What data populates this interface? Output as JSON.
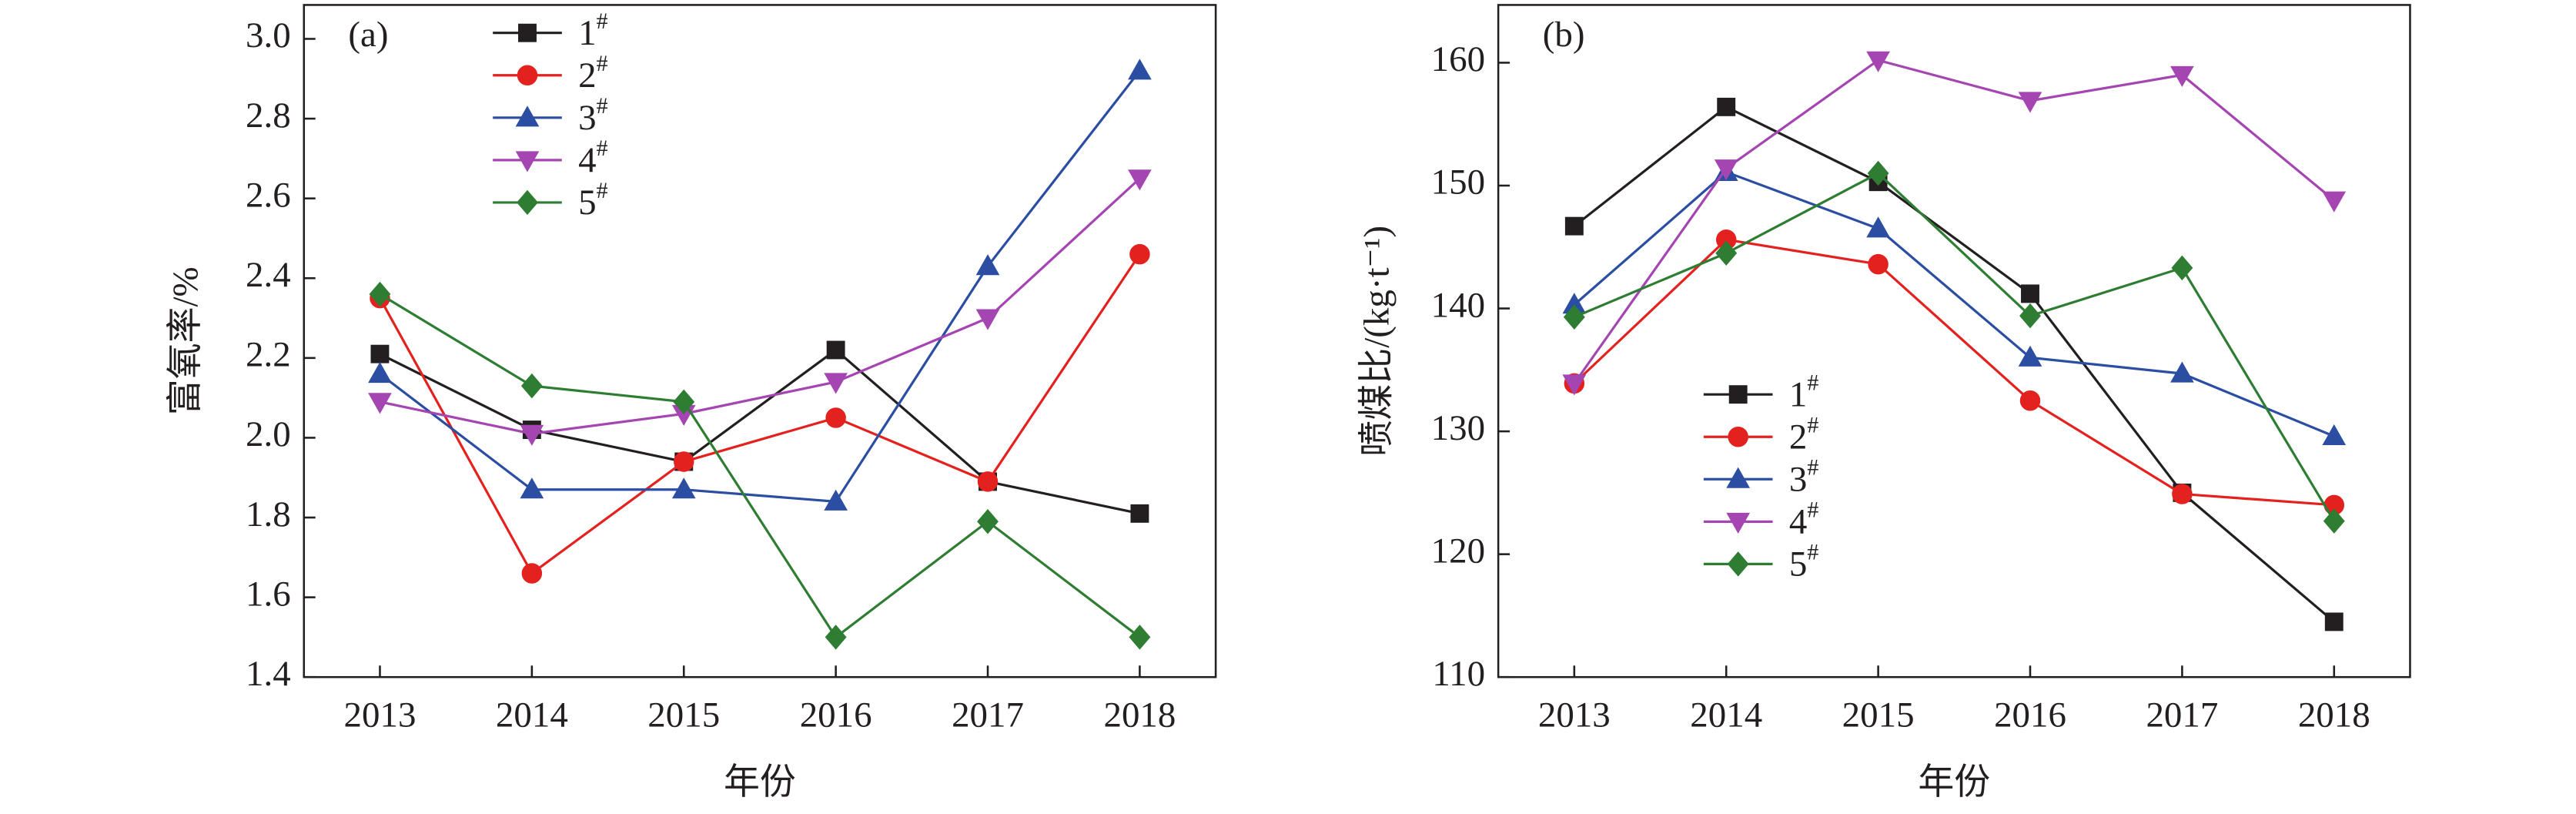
{
  "chart_data": [
    {
      "type": "line",
      "label": "(a)",
      "xlabel": "年份",
      "ylabel": "富氧率/%",
      "x": [
        2013,
        2014,
        2015,
        2016,
        2017,
        2018
      ],
      "xlim": [
        2012.5,
        2018.5
      ],
      "xticks": [
        2013,
        2014,
        2015,
        2016,
        2017,
        2018
      ],
      "ylim": [
        1.4,
        3.085
      ],
      "yticks": [
        1.4,
        1.6,
        1.8,
        {
          "value": 2,
          "label": "2.0"
        },
        2.2,
        2.4,
        2.6,
        2.8,
        {
          "value": 3,
          "label": "3.0"
        }
      ],
      "legend": "upper left",
      "series": [
        {
          "name": "1#",
          "color": "#231f20",
          "marker": "square",
          "values": [
            2.21,
            2.02,
            1.94,
            2.22,
            1.89,
            1.81
          ]
        },
        {
          "name": "2#",
          "color": "#e3221f",
          "marker": "circle",
          "values": [
            2.35,
            1.66,
            1.94,
            2.05,
            1.89,
            2.46
          ]
        },
        {
          "name": "3#",
          "color": "#2b4ea2",
          "marker": "triangle-up",
          "values": [
            2.16,
            1.87,
            1.87,
            1.84,
            2.43,
            2.92
          ]
        },
        {
          "name": "4#",
          "color": "#a445b2",
          "marker": "triangle-down",
          "values": [
            2.09,
            2.01,
            2.06,
            2.14,
            2.3,
            2.65
          ]
        },
        {
          "name": "5#",
          "color": "#2e7d32",
          "marker": "diamond",
          "values": [
            2.36,
            2.13,
            2.09,
            1.5,
            1.79,
            1.5
          ]
        }
      ]
    },
    {
      "type": "line",
      "label": "(b)",
      "xlabel": "年份",
      "ylabel": "喷煤比/(kg·t⁻¹)",
      "x": [
        2013,
        2014,
        2015,
        2016,
        2017,
        2018
      ],
      "xlim": [
        2012.5,
        2018.5
      ],
      "xticks": [
        2013,
        2014,
        2015,
        2016,
        2017,
        2018
      ],
      "ylim": [
        110,
        164.7
      ],
      "yticks": [
        110,
        120,
        130,
        140,
        150,
        160
      ],
      "legend": "lower left",
      "series": [
        {
          "name": "1#",
          "color": "#231f20",
          "marker": "square",
          "values": [
            146.7,
            156.4,
            150.3,
            141.2,
            125.0,
            114.5
          ]
        },
        {
          "name": "2#",
          "color": "#e3221f",
          "marker": "circle",
          "values": [
            133.9,
            145.6,
            143.6,
            132.5,
            124.9,
            124.0
          ]
        },
        {
          "name": "3#",
          "color": "#2b4ea2",
          "marker": "triangle-up",
          "values": [
            140.3,
            151.1,
            146.5,
            136.0,
            134.7,
            129.6
          ]
        },
        {
          "name": "4#",
          "color": "#a445b2",
          "marker": "triangle-down",
          "values": [
            133.9,
            151.4,
            160.2,
            156.9,
            159.0,
            148.8
          ]
        },
        {
          "name": "5#",
          "color": "#2e7d32",
          "marker": "diamond",
          "values": [
            139.3,
            144.5,
            151.0,
            139.4,
            143.3,
            122.7
          ]
        }
      ]
    }
  ]
}
